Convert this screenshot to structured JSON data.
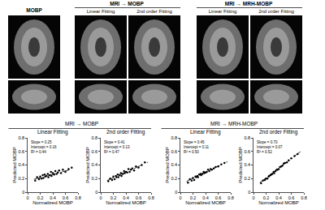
{
  "figure": {
    "image_header": "MOBP",
    "image_groups": [
      {
        "title": "MRI → MOBP",
        "columns": [
          "Linear Fitting",
          "2nd order Fitting"
        ]
      },
      {
        "title": "MRI → MRH-MOBP",
        "columns": [
          "Linear Fitting",
          "2nd order Fitting"
        ]
      }
    ],
    "plot_groups": [
      "MRI → MOBP",
      "MRI → MRH-MOBP"
    ]
  },
  "chart_data": [
    {
      "type": "scatter",
      "title": "Linear Fitting",
      "x_label": "Normalized MOBP",
      "y_label": "Predicted MOBP",
      "annotations": [
        "Slope = 0.25",
        "Intercept = 0.16",
        "R² = 0.44"
      ],
      "xlim": [
        0,
        0.8
      ],
      "ylim": [
        0,
        0.8
      ],
      "xticks": [
        0,
        0.2,
        0.4,
        0.6,
        0.8
      ],
      "yticks": [
        0,
        0.2,
        0.4,
        0.6,
        0.8
      ],
      "grid": false,
      "series": [
        {
          "type": "scatter",
          "marker": "circle",
          "color": "#000000",
          "x": [
            0.12,
            0.15,
            0.18,
            0.2,
            0.22,
            0.24,
            0.25,
            0.27,
            0.28,
            0.3,
            0.32,
            0.33,
            0.35,
            0.37,
            0.38,
            0.4,
            0.42,
            0.44,
            0.46,
            0.48,
            0.5,
            0.53,
            0.56,
            0.6,
            0.65,
            0.7
          ],
          "values": [
            0.17,
            0.22,
            0.19,
            0.23,
            0.2,
            0.25,
            0.21,
            0.26,
            0.23,
            0.24,
            0.27,
            0.22,
            0.25,
            0.3,
            0.24,
            0.28,
            0.26,
            0.31,
            0.27,
            0.29,
            0.32,
            0.28,
            0.33,
            0.3,
            0.34,
            0.36
          ]
        },
        {
          "type": "line",
          "line_style": "dash",
          "color": "#000000",
          "x": [
            0.1,
            0.75
          ],
          "values": [
            0.19,
            0.35
          ]
        }
      ]
    },
    {
      "type": "scatter",
      "title": "2nd order Fitting",
      "x_label": "Normalized MOBP",
      "y_label": "Predicted MOBP",
      "annotations": [
        "Slope = 0.41",
        "Intercept = 0.13",
        "R² = 0.47"
      ],
      "xlim": [
        0,
        0.8
      ],
      "ylim": [
        0,
        0.8
      ],
      "xticks": [
        0,
        0.2,
        0.4,
        0.6,
        0.8
      ],
      "yticks": [
        0,
        0.2,
        0.4,
        0.6,
        0.8
      ],
      "grid": false,
      "series": [
        {
          "type": "scatter",
          "marker": "circle",
          "color": "#000000",
          "x": [
            0.12,
            0.15,
            0.18,
            0.2,
            0.22,
            0.24,
            0.25,
            0.27,
            0.28,
            0.3,
            0.32,
            0.33,
            0.35,
            0.37,
            0.38,
            0.4,
            0.42,
            0.44,
            0.46,
            0.48,
            0.5,
            0.53,
            0.56,
            0.6,
            0.65,
            0.7
          ],
          "values": [
            0.16,
            0.2,
            0.18,
            0.23,
            0.19,
            0.24,
            0.22,
            0.26,
            0.22,
            0.25,
            0.28,
            0.24,
            0.27,
            0.31,
            0.28,
            0.3,
            0.29,
            0.34,
            0.3,
            0.33,
            0.35,
            0.32,
            0.38,
            0.36,
            0.4,
            0.44
          ]
        },
        {
          "type": "line",
          "line_style": "dash",
          "color": "#000000",
          "x": [
            0.1,
            0.75
          ],
          "values": [
            0.17,
            0.44
          ]
        }
      ]
    },
    {
      "type": "scatter",
      "title": "Linear Fitting",
      "x_label": "Normalized MOBP",
      "y_label": "Predicted MOBP",
      "annotations": [
        "Slope = 0.45",
        "Intercept = 0.11",
        "R² = 0.50"
      ],
      "xlim": [
        0,
        0.8
      ],
      "ylim": [
        0,
        0.8
      ],
      "xticks": [
        0,
        0.2,
        0.4,
        0.6,
        0.8
      ],
      "yticks": [
        0,
        0.2,
        0.4,
        0.6,
        0.8
      ],
      "grid": false,
      "series": [
        {
          "type": "scatter",
          "marker": "circle",
          "color": "#000000",
          "x": [
            0.12,
            0.15,
            0.18,
            0.2,
            0.22,
            0.24,
            0.25,
            0.27,
            0.28,
            0.3,
            0.32,
            0.33,
            0.35,
            0.37,
            0.38,
            0.4,
            0.42,
            0.44,
            0.46,
            0.48,
            0.5,
            0.53,
            0.56,
            0.6,
            0.65,
            0.7
          ],
          "values": [
            0.14,
            0.19,
            0.17,
            0.21,
            0.18,
            0.23,
            0.22,
            0.24,
            0.22,
            0.26,
            0.27,
            0.25,
            0.27,
            0.3,
            0.28,
            0.29,
            0.3,
            0.33,
            0.31,
            0.34,
            0.33,
            0.35,
            0.37,
            0.38,
            0.41,
            0.43
          ]
        },
        {
          "type": "line",
          "line_style": "dash",
          "color": "#000000",
          "x": [
            0.1,
            0.75
          ],
          "values": [
            0.16,
            0.45
          ]
        }
      ]
    },
    {
      "type": "scatter",
      "title": "2nd order Fitting",
      "x_label": "Normalized MOBP",
      "y_label": "Predicted MOBP",
      "annotations": [
        "Slope = 0.70",
        "Intercept = 0.07",
        "R² = 0.52"
      ],
      "xlim": [
        0,
        0.8
      ],
      "ylim": [
        0,
        0.8
      ],
      "xticks": [
        0,
        0.2,
        0.4,
        0.6,
        0.8
      ],
      "yticks": [
        0,
        0.2,
        0.4,
        0.6,
        0.8
      ],
      "grid": false,
      "series": [
        {
          "type": "scatter",
          "marker": "circle",
          "color": "#000000",
          "x": [
            0.12,
            0.15,
            0.18,
            0.2,
            0.22,
            0.24,
            0.25,
            0.27,
            0.28,
            0.3,
            0.32,
            0.33,
            0.35,
            0.37,
            0.38,
            0.4,
            0.42,
            0.44,
            0.46,
            0.48,
            0.5,
            0.53,
            0.56,
            0.6,
            0.65,
            0.7
          ],
          "values": [
            0.13,
            0.17,
            0.18,
            0.2,
            0.2,
            0.23,
            0.24,
            0.25,
            0.26,
            0.27,
            0.3,
            0.28,
            0.31,
            0.33,
            0.33,
            0.34,
            0.37,
            0.38,
            0.39,
            0.42,
            0.43,
            0.44,
            0.47,
            0.5,
            0.53,
            0.56
          ]
        },
        {
          "type": "line",
          "line_style": "dash",
          "color": "#000000",
          "x": [
            0.1,
            0.75
          ],
          "values": [
            0.14,
            0.6
          ]
        }
      ]
    }
  ]
}
